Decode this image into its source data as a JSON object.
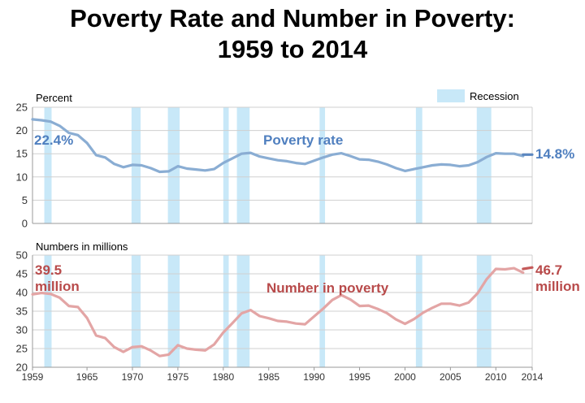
{
  "title_line1": "Poverty Rate and Number in Poverty:",
  "title_line2": "1959 to 2014",
  "legend_recession": "Recession",
  "colors": {
    "rate": "#8aadd3",
    "rate_dark": "#5b87c0",
    "rate_label": "#4f7fbf",
    "number": "#e3a5a5",
    "number_dark": "#c55a5a",
    "number_label": "#b84a4a",
    "recession": "#c8e8f8"
  },
  "chart_data": [
    {
      "type": "line",
      "ylabel": "Percent",
      "ylim": [
        0,
        25
      ],
      "yticks": [
        "0",
        "5",
        "10",
        "15",
        "20",
        "25"
      ],
      "xlim": [
        1959,
        2014
      ],
      "series_label": "Poverty rate",
      "start_label": "22.4%",
      "end_label": "14.8%",
      "x": [
        1959,
        1960,
        1961,
        1962,
        1963,
        1964,
        1965,
        1966,
        1967,
        1968,
        1969,
        1970,
        1971,
        1972,
        1973,
        1974,
        1975,
        1976,
        1977,
        1978,
        1979,
        1980,
        1981,
        1982,
        1983,
        1984,
        1985,
        1986,
        1987,
        1988,
        1989,
        1990,
        1991,
        1992,
        1993,
        1994,
        1995,
        1996,
        1997,
        1998,
        1999,
        2000,
        2001,
        2002,
        2003,
        2004,
        2005,
        2006,
        2007,
        2008,
        2009,
        2010,
        2011,
        2012,
        2013
      ],
      "values": [
        22.4,
        22.2,
        21.9,
        21.0,
        19.5,
        19.0,
        17.3,
        14.7,
        14.2,
        12.8,
        12.1,
        12.6,
        12.5,
        11.9,
        11.1,
        11.2,
        12.3,
        11.8,
        11.6,
        11.4,
        11.7,
        13.0,
        14.0,
        15.0,
        15.2,
        14.4,
        14.0,
        13.6,
        13.4,
        13.0,
        12.8,
        13.5,
        14.2,
        14.8,
        15.1,
        14.5,
        13.8,
        13.7,
        13.3,
        12.7,
        11.9,
        11.3,
        11.7,
        12.1,
        12.5,
        12.7,
        12.6,
        12.3,
        12.5,
        13.2,
        14.3,
        15.1,
        15.0,
        15.0,
        14.5
      ],
      "estimate_x": [
        2013,
        2014
      ],
      "estimate_values": [
        14.8,
        14.8
      ]
    },
    {
      "type": "line",
      "ylabel": "Numbers in millions",
      "ylim": [
        20,
        50
      ],
      "yticks": [
        "20",
        "25",
        "30",
        "35",
        "40",
        "45",
        "50"
      ],
      "xlim": [
        1959,
        2014
      ],
      "series_label": "Number in poverty",
      "start_label": [
        "39.5",
        "million"
      ],
      "end_label": [
        "46.7",
        "million"
      ],
      "x": [
        1959,
        1960,
        1961,
        1962,
        1963,
        1964,
        1965,
        1966,
        1967,
        1968,
        1969,
        1970,
        1971,
        1972,
        1973,
        1974,
        1975,
        1976,
        1977,
        1978,
        1979,
        1980,
        1981,
        1982,
        1983,
        1984,
        1985,
        1986,
        1987,
        1988,
        1989,
        1990,
        1991,
        1992,
        1993,
        1994,
        1995,
        1996,
        1997,
        1998,
        1999,
        2000,
        2001,
        2002,
        2003,
        2004,
        2005,
        2006,
        2007,
        2008,
        2009,
        2010,
        2011,
        2012,
        2013
      ],
      "values": [
        39.5,
        39.9,
        39.6,
        38.6,
        36.4,
        36.1,
        33.2,
        28.5,
        27.8,
        25.4,
        24.1,
        25.4,
        25.6,
        24.5,
        23.0,
        23.4,
        25.9,
        25.0,
        24.7,
        24.5,
        26.1,
        29.3,
        31.8,
        34.4,
        35.3,
        33.7,
        33.1,
        32.4,
        32.2,
        31.7,
        31.5,
        33.6,
        35.7,
        38.0,
        39.3,
        38.1,
        36.4,
        36.5,
        35.6,
        34.5,
        32.8,
        31.6,
        32.9,
        34.6,
        35.9,
        37.0,
        37.0,
        36.5,
        37.3,
        39.8,
        43.6,
        46.3,
        46.2,
        46.5,
        45.3
      ],
      "estimate_x": [
        2013,
        2014
      ],
      "estimate_values": [
        46.3,
        46.7
      ],
      "xticks": [
        "1959",
        "1965",
        "1970",
        "1975",
        "1980",
        "1985",
        "1990",
        "1995",
        "2000",
        "2005",
        "2010",
        "2014"
      ]
    }
  ],
  "recessions": [
    [
      1960.3,
      1961.1
    ],
    [
      1969.9,
      1970.9
    ],
    [
      1973.9,
      1975.2
    ],
    [
      1980.0,
      1980.6
    ],
    [
      1981.5,
      1982.9
    ],
    [
      1990.6,
      1991.2
    ],
    [
      2001.2,
      2001.9
    ],
    [
      2007.9,
      2009.5
    ]
  ]
}
